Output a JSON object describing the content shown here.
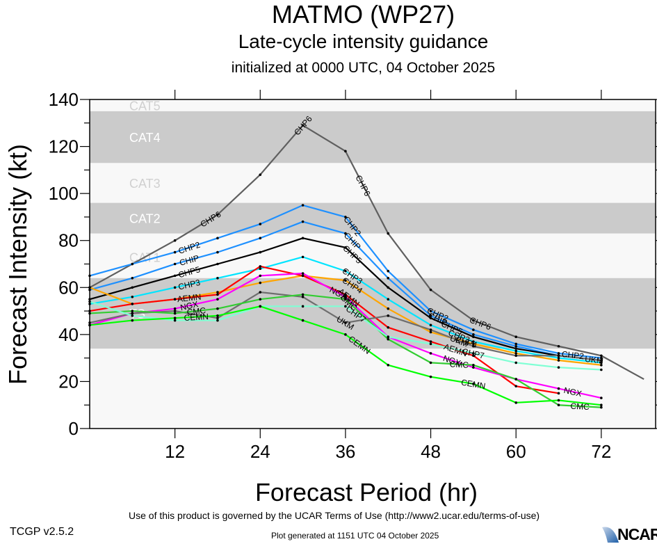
{
  "header": {
    "title": "MATMO (WP27)",
    "subtitle": "Late-cycle intensity guidance",
    "init": "initialized at 0000 UTC, 04 October 2025"
  },
  "footer": {
    "terms": "Use of this product is governed by the UCAR Terms of Use (http://www2.ucar.edu/terms-of-use)",
    "version": "TCGP v2.5.2",
    "generated": "Plot generated at 1151 UTC   04 October 2025",
    "logo": "NCAR"
  },
  "chart_data": {
    "type": "line",
    "title": "MATMO (WP27)",
    "subtitle": "Late-cycle intensity guidance",
    "xlabel": "Forecast Period (hr)",
    "ylabel": "Forecast Intensity (kt)",
    "xlim": [
      0,
      79
    ],
    "ylim": [
      0,
      140
    ],
    "xticks": [
      12,
      24,
      36,
      48,
      60,
      72
    ],
    "yticks": [
      0,
      20,
      40,
      60,
      80,
      100,
      120,
      140
    ],
    "bands": [
      {
        "label": "TS",
        "range": [
          34,
          64
        ],
        "shaded": true
      },
      {
        "label": "CAT1",
        "range": [
          64,
          83
        ],
        "shaded": false
      },
      {
        "label": "CAT2",
        "range": [
          83,
          96
        ],
        "shaded": true
      },
      {
        "label": "CAT3",
        "range": [
          96,
          113
        ],
        "shaded": false
      },
      {
        "label": "CAT4",
        "range": [
          113,
          135
        ],
        "shaded": true
      },
      {
        "label": "CAT5",
        "range": [
          135,
          140
        ],
        "shaded": false
      }
    ],
    "series": [
      {
        "name": "CHP6",
        "color": "#5f5f5f",
        "x": [
          0,
          6,
          12,
          18,
          24,
          30,
          36,
          42,
          48,
          54,
          60,
          66,
          72,
          78
        ],
        "values": [
          60,
          70,
          80,
          91,
          108,
          129,
          118,
          83,
          59,
          46,
          39,
          35,
          31,
          21
        ]
      },
      {
        "name": "CHP2",
        "color": "#1e90ff",
        "x": [
          0,
          6,
          12,
          18,
          24,
          30,
          36,
          42,
          48,
          54,
          60,
          66,
          72
        ],
        "values": [
          65,
          70,
          75,
          81,
          87,
          95,
          90,
          67,
          50,
          42,
          36,
          32,
          30
        ]
      },
      {
        "name": "CHIP",
        "color": "#1e90ff",
        "x": [
          0,
          6,
          12,
          18,
          24,
          30,
          36,
          42,
          48,
          54,
          60,
          66,
          72
        ],
        "values": [
          59,
          64,
          70,
          75,
          81,
          88,
          83,
          64,
          48,
          40,
          35,
          31,
          29
        ]
      },
      {
        "name": "CHP5",
        "color": "#000000",
        "x": [
          0,
          6,
          12,
          18,
          24,
          30,
          36,
          42,
          48,
          54,
          60,
          66,
          72
        ],
        "values": [
          55,
          60,
          65,
          70,
          75,
          81,
          77,
          60,
          47,
          39,
          34,
          31,
          29
        ]
      },
      {
        "name": "CHP3",
        "color": "#00e5ff",
        "x": [
          0,
          6,
          12,
          18,
          24,
          30,
          36,
          42,
          48,
          54,
          60,
          66,
          72
        ],
        "values": [
          53,
          56,
          60,
          64,
          68,
          73,
          67,
          55,
          44,
          37,
          33,
          30,
          28
        ]
      },
      {
        "name": "CHP4",
        "color": "#ffa500",
        "x": [
          0,
          6,
          12,
          18,
          24,
          30,
          36,
          42,
          48,
          54,
          60,
          66,
          72
        ],
        "values": [
          60,
          53,
          55,
          58,
          62,
          65,
          63,
          51,
          41,
          36,
          32,
          29,
          27
        ]
      },
      {
        "name": "AEMN",
        "color": "#ff0000",
        "x": [
          0,
          6,
          12,
          18,
          24,
          30,
          36,
          42,
          48,
          54,
          60,
          66
        ],
        "values": [
          50,
          53,
          55,
          57,
          69,
          65,
          57,
          43,
          37,
          31,
          18,
          15
        ]
      },
      {
        "name": "NGX",
        "color": "#ff00ff",
        "x": [
          0,
          6,
          12,
          18,
          24,
          30,
          36,
          42,
          48,
          54,
          60,
          66,
          72
        ],
        "values": [
          44,
          49,
          51,
          55,
          65,
          66,
          56,
          39,
          32,
          26,
          21,
          17,
          13
        ]
      },
      {
        "name": "UKM",
        "color": "#6e6e6e",
        "x": [
          0,
          6,
          12,
          18,
          24,
          30,
          36,
          42,
          48,
          54,
          60,
          66,
          72
        ],
        "values": [
          45,
          49,
          50,
          47,
          58,
          56,
          45,
          48,
          42,
          35,
          31,
          31,
          29
        ]
      },
      {
        "name": "CMC",
        "color": "#32cd32",
        "x": [
          0,
          6,
          12,
          18,
          24,
          30,
          36,
          42,
          48,
          54,
          60,
          66,
          72
        ],
        "values": [
          49,
          50,
          49,
          51,
          55,
          57,
          55,
          38,
          28,
          27,
          21,
          10,
          9
        ]
      },
      {
        "name": "CHP7",
        "color": "#7fffd4",
        "x": [
          0,
          6,
          12,
          18,
          24,
          30,
          36,
          42,
          48,
          54,
          60,
          66,
          72
        ],
        "values": [
          54,
          48,
          46,
          46,
          52,
          52,
          52,
          39,
          36,
          32,
          28,
          26,
          25
        ]
      },
      {
        "name": "CEMN",
        "color": "#00ff00",
        "x": [
          0,
          6,
          12,
          18,
          24,
          30,
          36,
          42,
          48,
          54,
          60,
          66,
          72
        ],
        "values": [
          44,
          46,
          47,
          48,
          52,
          46,
          40,
          27,
          22,
          19,
          11,
          12,
          10
        ]
      }
    ],
    "annotations": [
      {
        "series": "CHP6",
        "at_x": [
          17,
          30,
          38.5,
          55
        ]
      },
      {
        "series": "CHP2",
        "at_x": [
          14,
          37,
          49
        ]
      },
      {
        "series": "CHIP",
        "at_x": [
          14,
          37,
          49
        ]
      },
      {
        "series": "CHP5",
        "at_x": [
          14,
          37,
          51
        ]
      },
      {
        "series": "CHP3",
        "at_x": [
          14,
          37,
          52
        ]
      },
      {
        "series": "CHP4",
        "at_x": [
          37,
          53
        ]
      },
      {
        "series": "AEMN",
        "at_x": [
          14,
          36.5,
          51.5
        ]
      },
      {
        "series": "NGX",
        "at_x": [
          14,
          35,
          51,
          68
        ]
      },
      {
        "series": "UKM",
        "at_x": [
          36,
          52
        ]
      },
      {
        "series": "CMC",
        "at_x": [
          15,
          36.5,
          52,
          69
        ]
      },
      {
        "series": "CHP7",
        "at_x": [
          37.5,
          54
        ]
      },
      {
        "series": "CEMN",
        "at_x": [
          15,
          38,
          54
        ]
      },
      {
        "series": "CHP2",
        "at_x": [
          68
        ]
      },
      {
        "series": "UKM",
        "at_x": [
          71
        ]
      }
    ]
  }
}
